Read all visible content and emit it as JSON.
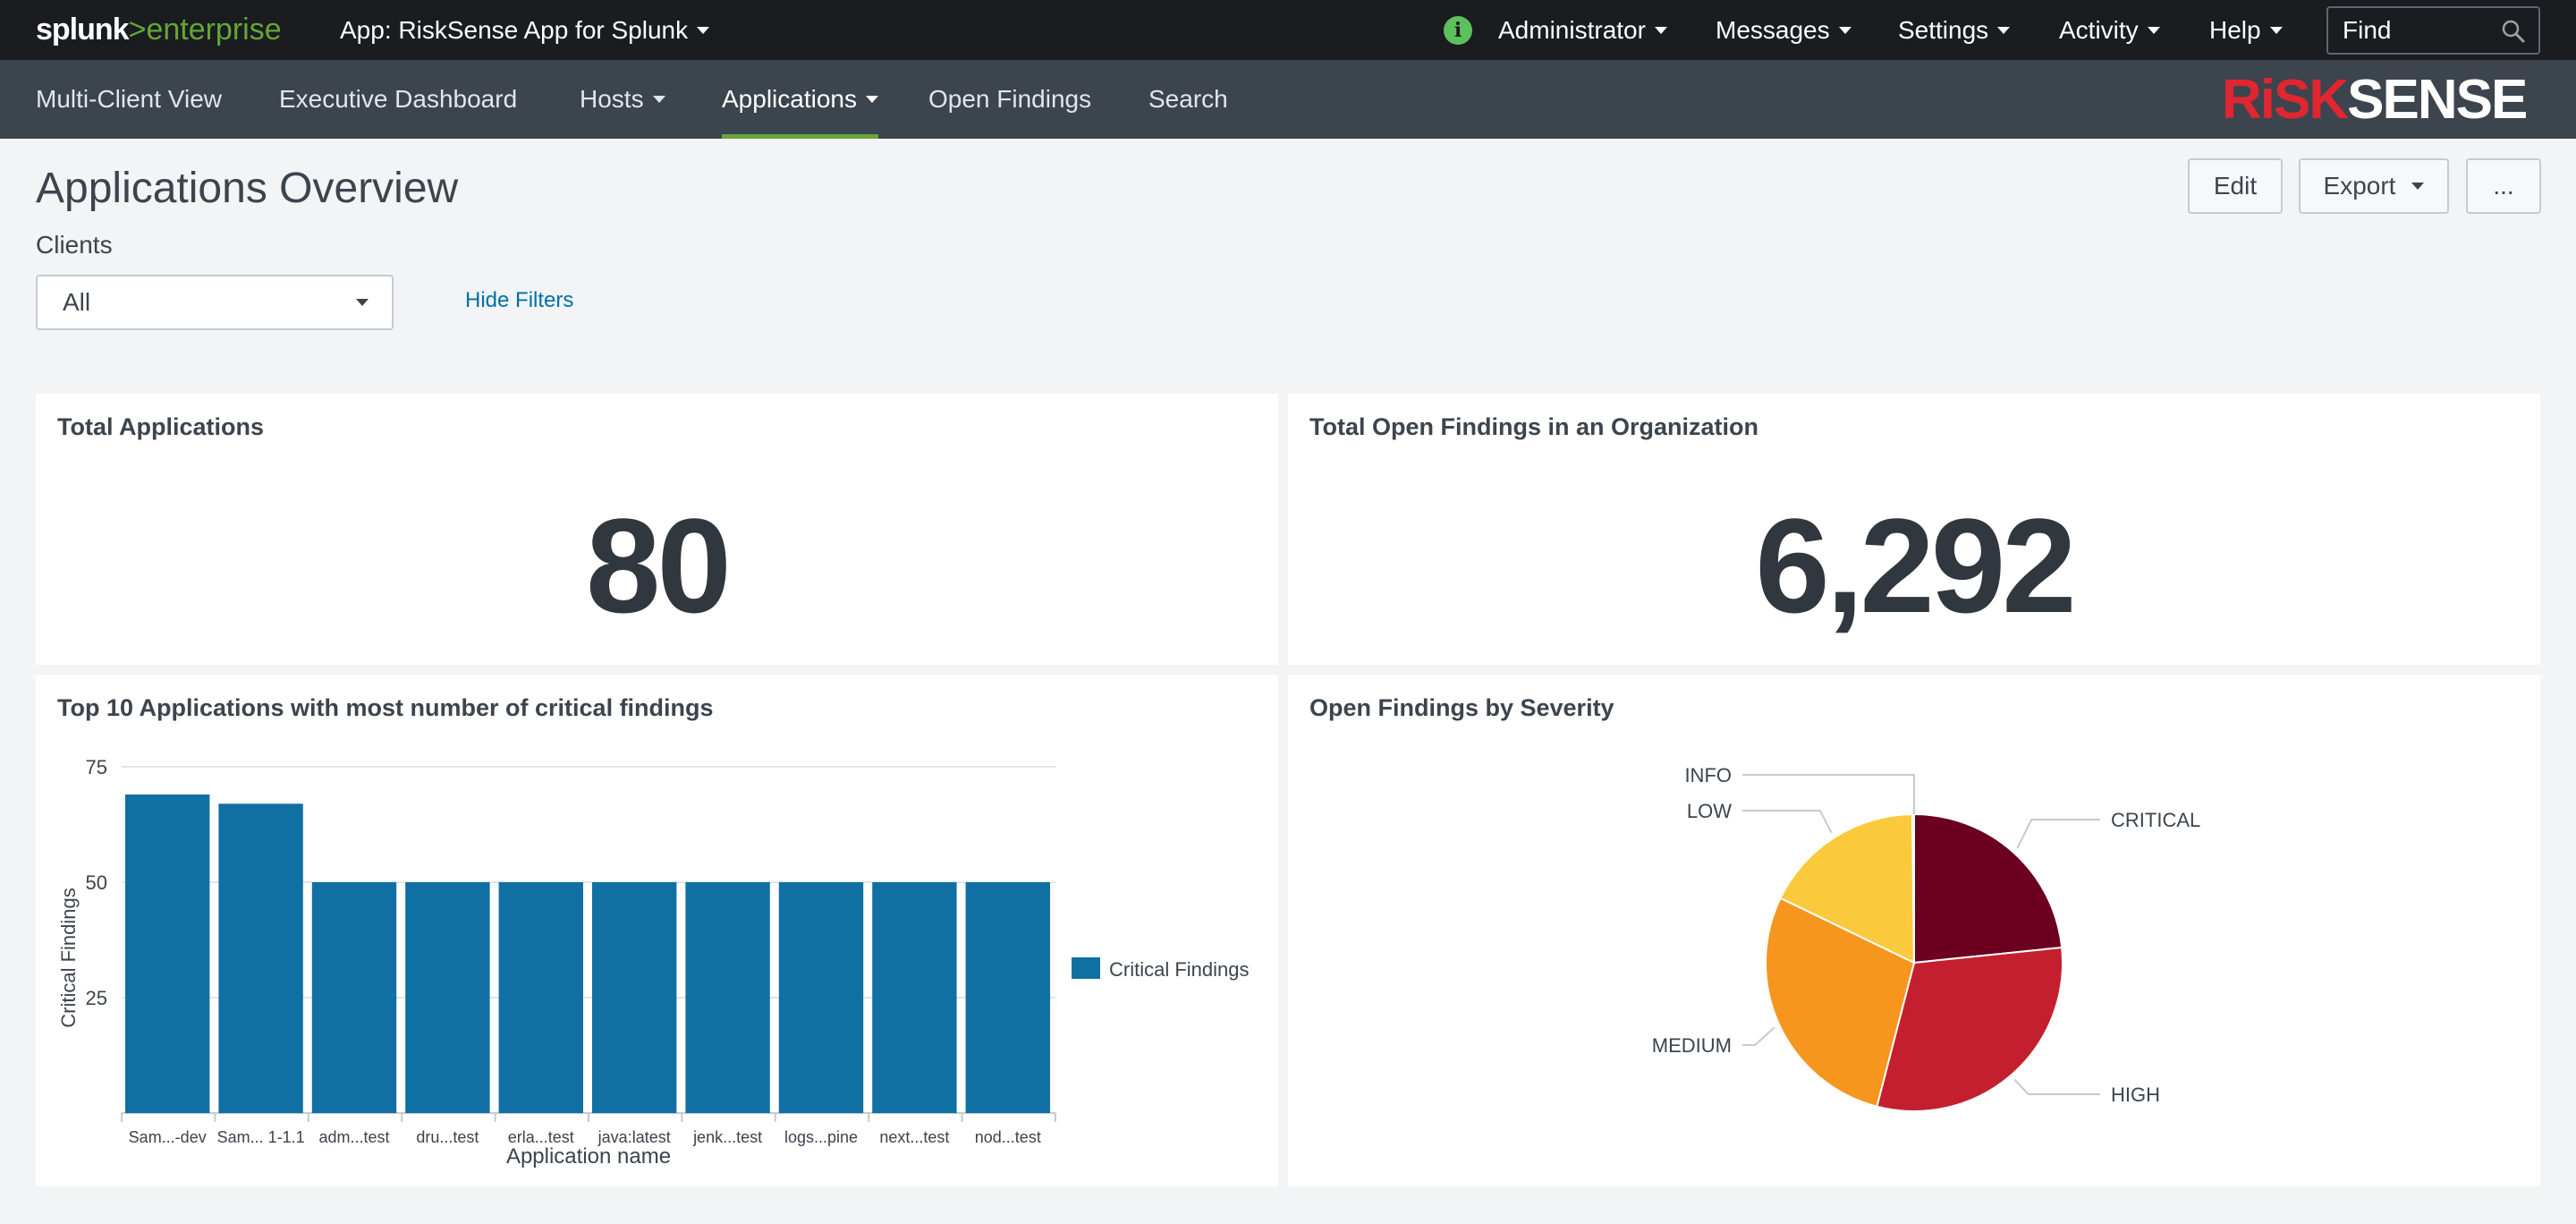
{
  "topbar": {
    "logo_word1": "splunk",
    "logo_sep": ">",
    "logo_word2": "enterprise",
    "app_label": "App: RiskSense App for Splunk",
    "user_label": "Administrator",
    "messages_label": "Messages",
    "settings_label": "Settings",
    "activity_label": "Activity",
    "help_label": "Help",
    "find_placeholder": "Find",
    "status_icon": "info-icon",
    "find_icon": "search-icon"
  },
  "nav": {
    "items": [
      {
        "label": "Multi-Client View"
      },
      {
        "label": "Executive Dashboard"
      },
      {
        "label": "Hosts"
      },
      {
        "label": "Applications"
      },
      {
        "label": "Open Findings"
      },
      {
        "label": "Search"
      }
    ],
    "brand_part1": "RiSK",
    "brand_part2": "SENSE",
    "active_color": "#65a637"
  },
  "header": {
    "title": "Applications Overview",
    "edit_label": "Edit",
    "export_label": "Export",
    "more_label": "..."
  },
  "filters": {
    "clients_label": "Clients",
    "clients_value": "All",
    "hide_filters_label": "Hide Filters"
  },
  "panels": {
    "total_apps": {
      "title": "Total Applications",
      "value": "80"
    },
    "total_findings": {
      "title": "Total Open Findings in an Organization",
      "value": "6,292"
    },
    "bar": {
      "title": "Top 10 Applications with most number of critical findings"
    },
    "pie": {
      "title": "Open Findings by Severity"
    }
  },
  "chart_data": [
    {
      "type": "bar",
      "categories": [
        "Sam...-dev",
        "Sam... 1-1.1",
        "adm...test",
        "dru...test",
        "erla...test",
        "java:latest",
        "jenk...test",
        "logs...pine",
        "next...test",
        "nod...test"
      ],
      "series": [
        {
          "name": "Critical Findings",
          "values": [
            69,
            67,
            50,
            50,
            50,
            50,
            50,
            50,
            50,
            50
          ],
          "color": "#1170a3"
        }
      ],
      "xlabel": "Application name",
      "ylabel": "Critical Findings",
      "yticks": [
        25,
        50,
        75
      ],
      "ylim": [
        0,
        75
      ],
      "grid": true,
      "legend": "right"
    },
    {
      "type": "pie",
      "slices": [
        {
          "label": "CRITICAL",
          "value": 1470,
          "color": "#6b0020"
        },
        {
          "label": "HIGH",
          "value": 1930,
          "color": "#c41f2e"
        },
        {
          "label": "MEDIUM",
          "value": 1770,
          "color": "#f6961f"
        },
        {
          "label": "LOW",
          "value": 1110,
          "color": "#fbca3c"
        },
        {
          "label": "INFO",
          "value": 12,
          "color": "#9ca1a6"
        }
      ]
    }
  ]
}
